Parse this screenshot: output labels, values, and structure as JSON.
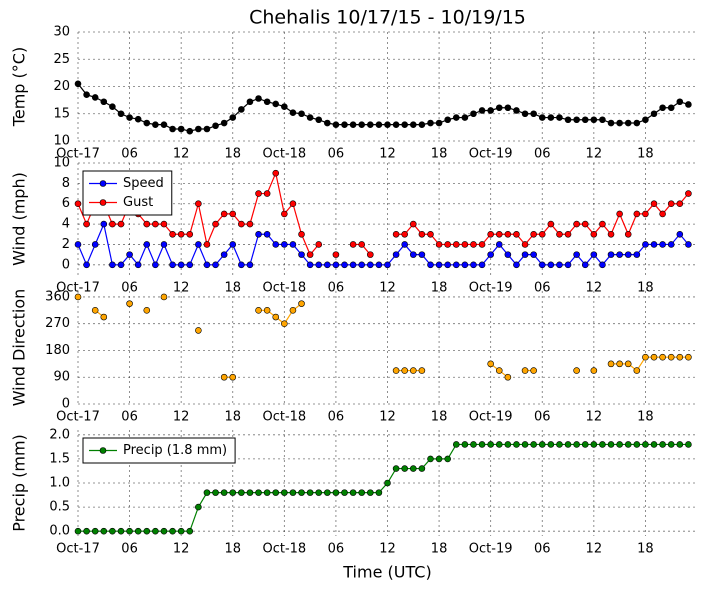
{
  "chart_data": [
    {
      "type": "line",
      "title": "Chehalis 10/17/15 - 10/19/15",
      "ylabel": "Temp (°C)",
      "x": [
        0,
        1,
        2,
        3,
        4,
        5,
        6,
        7,
        8,
        9,
        10,
        11,
        12,
        13,
        14,
        15,
        16,
        17,
        18,
        19,
        20,
        21,
        22,
        23,
        24,
        25,
        26,
        27,
        28,
        29,
        30,
        31,
        32,
        33,
        34,
        35,
        36,
        37,
        38,
        39,
        40,
        41,
        42,
        43,
        44,
        45,
        46,
        47,
        48,
        49,
        50,
        51,
        52,
        53,
        54,
        55,
        56,
        57,
        58,
        59,
        60,
        61,
        62,
        63,
        64,
        65,
        66,
        67,
        68,
        69,
        70,
        71
      ],
      "series": [
        {
          "color": "#000000",
          "values": [
            20.5,
            18.5,
            18,
            17.2,
            16.3,
            15,
            14.3,
            14,
            13.3,
            13,
            13,
            12.2,
            12.2,
            11.8,
            12.2,
            12.2,
            12.8,
            13.3,
            14.3,
            15.8,
            17.2,
            17.8,
            17.2,
            16.8,
            16.3,
            15.2,
            15,
            14.3,
            13.9,
            13.3,
            13,
            13,
            13,
            13,
            13,
            13,
            13,
            13,
            13,
            13,
            13,
            13.3,
            13.3,
            13.9,
            14.3,
            14.3,
            15,
            15.6,
            15.6,
            16.1,
            16.1,
            15.6,
            15,
            15,
            14.3,
            14.3,
            14.3,
            13.9,
            13.9,
            13.9,
            13.9,
            13.9,
            13.3,
            13.3,
            13.3,
            13.3,
            13.9,
            15,
            16.1,
            16.1,
            17.2,
            16.7
          ]
        }
      ],
      "xlim": [
        0,
        72
      ],
      "xticks": [
        {
          "value": 0,
          "label": "Oct-17"
        },
        {
          "value": 6,
          "label": "06"
        },
        12,
        18,
        {
          "value": 24,
          "label": "Oct-18"
        },
        {
          "value": 30,
          "label": "06"
        },
        {
          "value": 36,
          "label": "12"
        },
        {
          "value": 42,
          "label": "18"
        },
        {
          "value": 48,
          "label": "Oct-19"
        },
        {
          "value": 54,
          "label": "06"
        },
        {
          "value": 60,
          "label": "12"
        },
        {
          "value": 66,
          "label": "18"
        }
      ],
      "ylim": [
        10,
        30
      ],
      "yticks": [
        10,
        15,
        20,
        25,
        30
      ],
      "grid": true
    },
    {
      "type": "line",
      "ylabel": "Wind (mph)",
      "legend": "upper left",
      "x": [
        0,
        1,
        2,
        3,
        4,
        5,
        6,
        7,
        8,
        9,
        10,
        11,
        12,
        13,
        14,
        15,
        16,
        17,
        18,
        19,
        20,
        21,
        22,
        23,
        24,
        25,
        26,
        27,
        28,
        29,
        30,
        31,
        32,
        33,
        34,
        35,
        36,
        37,
        38,
        39,
        40,
        41,
        42,
        43,
        44,
        45,
        46,
        47,
        48,
        49,
        50,
        51,
        52,
        53,
        54,
        55,
        56,
        57,
        58,
        59,
        60,
        61,
        62,
        63,
        64,
        65,
        66,
        67,
        68,
        69,
        70,
        71
      ],
      "series": [
        {
          "name": "Speed",
          "color": "#0000ff",
          "values": [
            2,
            0,
            2,
            4,
            0,
            0,
            1,
            0,
            2,
            0,
            2,
            0,
            0,
            0,
            2,
            0,
            0,
            1,
            2,
            0,
            0,
            3,
            3,
            2,
            2,
            2,
            1,
            0,
            0,
            0,
            0,
            0,
            0,
            0,
            0,
            0,
            0,
            1,
            2,
            1,
            1,
            0,
            0,
            0,
            0,
            0,
            0,
            0,
            1,
            2,
            1,
            0,
            1,
            1,
            0,
            0,
            0,
            0,
            1,
            0,
            1,
            0,
            1,
            1,
            1,
            1,
            2,
            2,
            2,
            2,
            3,
            2
          ]
        },
        {
          "name": "Gust",
          "color": "#ff0000",
          "values": [
            6,
            4,
            6,
            6,
            4,
            4,
            6,
            5,
            4,
            4,
            4,
            3,
            3,
            3,
            6,
            2,
            4,
            5,
            5,
            4,
            4,
            7,
            7,
            9,
            5,
            6,
            3,
            1,
            2,
            null,
            1,
            null,
            2,
            2,
            1,
            null,
            null,
            3,
            3,
            4,
            3,
            3,
            2,
            2,
            2,
            2,
            2,
            2,
            3,
            3,
            3,
            3,
            2,
            3,
            3,
            4,
            3,
            3,
            4,
            4,
            3,
            4,
            3,
            5,
            3,
            5,
            5,
            6,
            5,
            6,
            6,
            7
          ]
        }
      ],
      "xlim": [
        0,
        72
      ],
      "xticks": [
        {
          "value": 0,
          "label": "Oct-17"
        },
        {
          "value": 6,
          "label": "06"
        },
        12,
        18,
        {
          "value": 24,
          "label": "Oct-18"
        },
        {
          "value": 30,
          "label": "06"
        },
        {
          "value": 36,
          "label": "12"
        },
        {
          "value": 42,
          "label": "18"
        },
        {
          "value": 48,
          "label": "Oct-19"
        },
        {
          "value": 54,
          "label": "06"
        },
        {
          "value": 60,
          "label": "12"
        },
        {
          "value": 66,
          "label": "18"
        }
      ],
      "ylim": [
        -1,
        10
      ],
      "yticks": [
        0,
        2,
        4,
        6,
        8,
        10
      ],
      "grid": true
    },
    {
      "type": "line",
      "ylabel": "Wind Direction",
      "x": [
        0,
        1,
        2,
        3,
        4,
        5,
        6,
        7,
        8,
        9,
        10,
        11,
        12,
        13,
        14,
        15,
        16,
        17,
        18,
        19,
        20,
        21,
        22,
        23,
        24,
        25,
        26,
        27,
        28,
        29,
        30,
        31,
        32,
        33,
        34,
        35,
        36,
        37,
        38,
        39,
        40,
        41,
        42,
        43,
        44,
        45,
        46,
        47,
        48,
        49,
        50,
        51,
        52,
        53,
        54,
        55,
        56,
        57,
        58,
        59,
        60,
        61,
        62,
        63,
        64,
        65,
        66,
        67,
        68,
        69,
        70,
        71
      ],
      "series": [
        {
          "color": "#ffa500",
          "values": [
            360,
            null,
            315,
            292.5,
            null,
            null,
            337.5,
            null,
            315,
            null,
            360,
            null,
            null,
            null,
            247.5,
            null,
            null,
            90,
            90,
            null,
            null,
            315,
            315,
            292.5,
            270,
            315,
            337.5,
            null,
            null,
            null,
            null,
            null,
            null,
            null,
            null,
            null,
            null,
            112.5,
            112.5,
            112.5,
            112.5,
            null,
            null,
            null,
            null,
            null,
            null,
            null,
            135,
            112.5,
            90,
            null,
            112.5,
            112.5,
            null,
            null,
            null,
            null,
            112.5,
            null,
            112.5,
            null,
            135,
            135,
            135,
            112.5,
            157.5,
            157.5,
            157.5,
            157.5,
            157.5,
            157.5
          ]
        }
      ],
      "xlim": [
        0,
        72
      ],
      "xticks": [
        {
          "value": 0,
          "label": "Oct-17"
        },
        {
          "value": 6,
          "label": "06"
        },
        12,
        18,
        {
          "value": 24,
          "label": "Oct-18"
        },
        {
          "value": 30,
          "label": "06"
        },
        {
          "value": 36,
          "label": "12"
        },
        {
          "value": 42,
          "label": "18"
        },
        {
          "value": 48,
          "label": "Oct-19"
        },
        {
          "value": 54,
          "label": "06"
        },
        {
          "value": 60,
          "label": "12"
        },
        {
          "value": 66,
          "label": "18"
        }
      ],
      "ylim": [
        0,
        380
      ],
      "yticks": [
        0,
        90,
        180,
        270,
        360
      ],
      "grid": true
    },
    {
      "type": "line",
      "ylabel": "Precip (mm)",
      "xlabel": "Time (UTC)",
      "legend": "upper left",
      "x": [
        0,
        1,
        2,
        3,
        4,
        5,
        6,
        7,
        8,
        9,
        10,
        11,
        12,
        13,
        14,
        15,
        16,
        17,
        18,
        19,
        20,
        21,
        22,
        23,
        24,
        25,
        26,
        27,
        28,
        29,
        30,
        31,
        32,
        33,
        34,
        35,
        36,
        37,
        38,
        39,
        40,
        41,
        42,
        43,
        44,
        45,
        46,
        47,
        48,
        49,
        50,
        51,
        52,
        53,
        54,
        55,
        56,
        57,
        58,
        59,
        60,
        61,
        62,
        63,
        64,
        65,
        66,
        67,
        68,
        69,
        70,
        71
      ],
      "series": [
        {
          "name": "Precip (1.8 mm)",
          "color": "#008000",
          "values": [
            0,
            0,
            0,
            0,
            0,
            0,
            0,
            0,
            0,
            0,
            0,
            0,
            0,
            0,
            0.5,
            0.8,
            0.8,
            0.8,
            0.8,
            0.8,
            0.8,
            0.8,
            0.8,
            0.8,
            0.8,
            0.8,
            0.8,
            0.8,
            0.8,
            0.8,
            0.8,
            0.8,
            0.8,
            0.8,
            0.8,
            0.8,
            1.0,
            1.3,
            1.3,
            1.3,
            1.3,
            1.5,
            1.5,
            1.5,
            1.8,
            1.8,
            1.8,
            1.8,
            1.8,
            1.8,
            1.8,
            1.8,
            1.8,
            1.8,
            1.8,
            1.8,
            1.8,
            1.8,
            1.8,
            1.8,
            1.8,
            1.8,
            1.8,
            1.8,
            1.8,
            1.8,
            1.8,
            1.8,
            1.8,
            1.8,
            1.8,
            1.8
          ]
        }
      ],
      "xlim": [
        0,
        72
      ],
      "xticks": [
        {
          "value": 0,
          "label": "Oct-17"
        },
        {
          "value": 6,
          "label": "06"
        },
        12,
        18,
        {
          "value": 24,
          "label": "Oct-18"
        },
        {
          "value": 30,
          "label": "06"
        },
        {
          "value": 36,
          "label": "12"
        },
        {
          "value": 42,
          "label": "18"
        },
        {
          "value": 48,
          "label": "Oct-19"
        },
        {
          "value": 54,
          "label": "06"
        },
        {
          "value": 60,
          "label": "12"
        },
        {
          "value": 66,
          "label": "18"
        }
      ],
      "ylim": [
        -0.1,
        2.1
      ],
      "yticks": [
        {
          "value": 0,
          "label": "0.0"
        },
        0.5,
        {
          "value": 1,
          "label": "1.0"
        },
        1.5,
        {
          "value": 2,
          "label": "2.0"
        }
      ],
      "grid": true
    }
  ]
}
